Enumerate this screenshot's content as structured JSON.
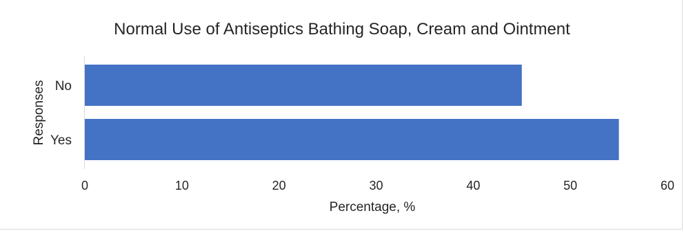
{
  "chart_data": {
    "type": "bar",
    "orientation": "horizontal",
    "title": "Normal Use of Antiseptics Bathing Soap, Cream and Ointment",
    "xlabel": "Percentage, %",
    "ylabel": "Responses",
    "categories": [
      "No",
      "Yes"
    ],
    "values": [
      45,
      55
    ],
    "xlim": [
      0,
      60
    ],
    "xticks": [
      "0",
      "10",
      "20",
      "30",
      "40",
      "50",
      "60"
    ],
    "grid": false,
    "legend": "none",
    "bar_color": "#4472C4"
  }
}
